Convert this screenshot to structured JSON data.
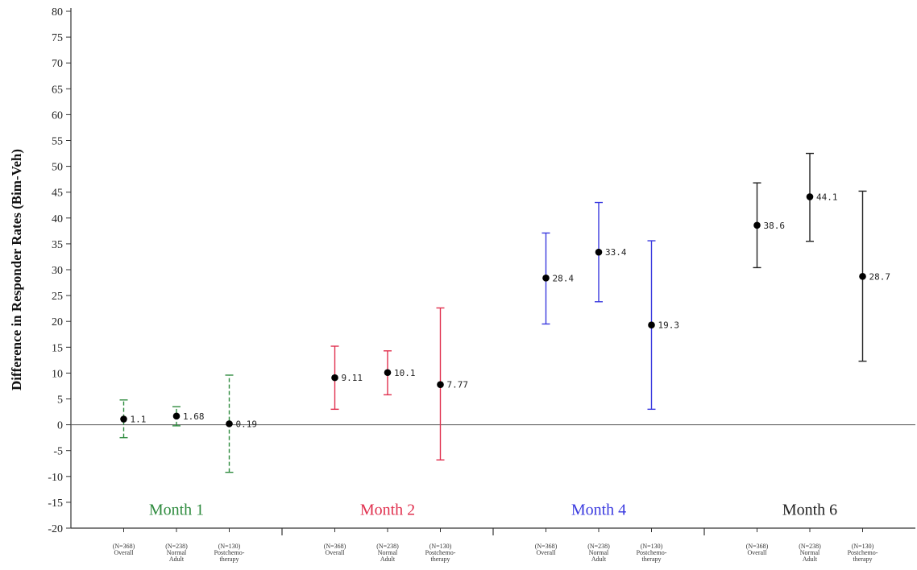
{
  "chart_data": {
    "type": "errorbar",
    "ylabel": "Difference in Responder Rates (Bim-Veh)",
    "ylim": [
      -20,
      80
    ],
    "ytick_step": 5,
    "reference_line": 0,
    "groups": [
      {
        "name": "Month 1",
        "color": "#2e8b3e",
        "line_style": "dashed",
        "points": [
          {
            "category": [
              "(N=368)",
              "Overall"
            ],
            "value": 1.1,
            "label": "1.1",
            "ci": [
              -2.5,
              4.8
            ]
          },
          {
            "category": [
              "(N=238)",
              "Normal",
              "Adult"
            ],
            "value": 1.68,
            "label": "1.68",
            "ci": [
              -0.2,
              3.5
            ]
          },
          {
            "category": [
              "(N=130)",
              "Postchemo-",
              "therapy"
            ],
            "value": 0.19,
            "label": "0.19",
            "ci": [
              -9.2,
              9.6
            ]
          }
        ]
      },
      {
        "name": "Month 2",
        "color": "#e0304e",
        "line_style": "solid",
        "points": [
          {
            "category": [
              "(N=368)",
              "Overall"
            ],
            "value": 9.11,
            "label": "9.11",
            "ci": [
              3.0,
              15.2
            ]
          },
          {
            "category": [
              "(N=238)",
              "Normal",
              "Adult"
            ],
            "value": 10.1,
            "label": "10.1",
            "ci": [
              5.8,
              14.3
            ]
          },
          {
            "category": [
              "(N=130)",
              "Postchemo-",
              "therapy"
            ],
            "value": 7.77,
            "label": "7.77",
            "ci": [
              -6.8,
              22.6
            ]
          }
        ]
      },
      {
        "name": "Month 4",
        "color": "#3a3adf",
        "line_style": "solid",
        "points": [
          {
            "category": [
              "(N=368)",
              "Overall"
            ],
            "value": 28.4,
            "label": "28.4",
            "ci": [
              19.5,
              37.1
            ]
          },
          {
            "category": [
              "(N=238)",
              "Normal",
              "Adult"
            ],
            "value": 33.4,
            "label": "33.4",
            "ci": [
              23.8,
              43.0
            ]
          },
          {
            "category": [
              "(N=130)",
              "Postchemo-",
              "therapy"
            ],
            "value": 19.3,
            "label": "19.3",
            "ci": [
              3.0,
              35.6
            ]
          }
        ]
      },
      {
        "name": "Month 6",
        "color": "#222222",
        "line_style": "solid",
        "points": [
          {
            "category": [
              "(N=368)",
              "Overall"
            ],
            "value": 38.6,
            "label": "38.6",
            "ci": [
              30.4,
              46.8
            ]
          },
          {
            "category": [
              "(N=238)",
              "Normal",
              "Adult"
            ],
            "value": 44.1,
            "label": "44.1",
            "ci": [
              35.5,
              52.5
            ]
          },
          {
            "category": [
              "(N=130)",
              "Postchemo-",
              "therapy"
            ],
            "value": 28.7,
            "label": "28.7",
            "ci": [
              12.3,
              45.2
            ]
          }
        ]
      }
    ]
  }
}
